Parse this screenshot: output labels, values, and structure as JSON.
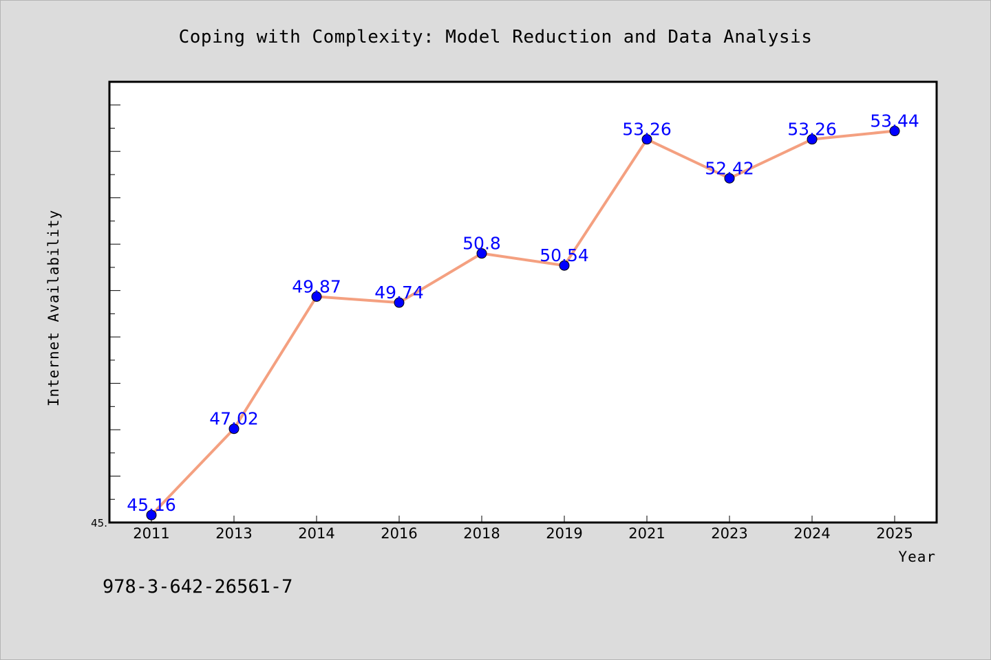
{
  "chart_data": {
    "type": "line",
    "title": "Coping with Complexity: Model Reduction and Data Analysis",
    "xlabel": "Year",
    "ylabel": "Internet Availability",
    "ymin_label": "45.",
    "categories": [
      "2011",
      "2013",
      "2014",
      "2016",
      "2018",
      "2019",
      "2021",
      "2023",
      "2024",
      "2025"
    ],
    "series": [
      {
        "values": [
          45.16,
          47.02,
          49.87,
          49.74,
          50.8,
          50.54,
          53.26,
          52.42,
          53.26,
          53.44
        ],
        "labels": [
          "45.16",
          "47.02",
          "49.87",
          "49.74",
          "50.8",
          "50.54",
          "53.26",
          "52.42",
          "53.26",
          "53.44"
        ]
      }
    ],
    "ylim": [
      45,
      54.5
    ],
    "grid": false,
    "line_color": "#f4a080",
    "marker_color": "#0000ff",
    "label_color": "#0000ff",
    "plot_background": "#ffffff",
    "page_background": "#dcdcdc"
  },
  "footer": {
    "isbn": "978-3-642-26561-7"
  }
}
